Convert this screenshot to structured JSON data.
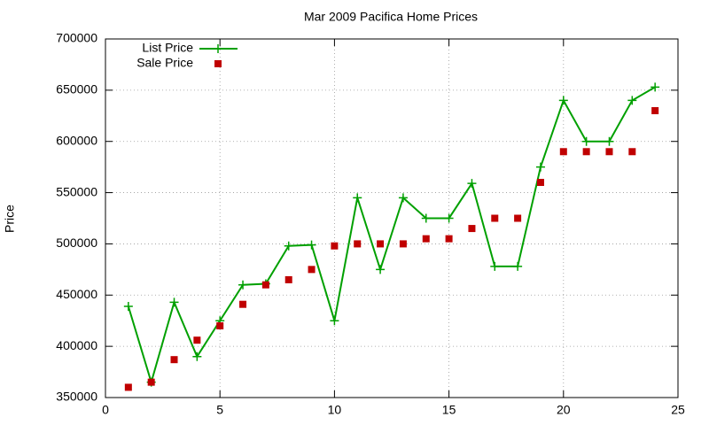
{
  "chart_data": {
    "type": "line",
    "title": "Mar 2009 Pacifica Home Prices",
    "y_label": "Price",
    "x": [
      1,
      2,
      3,
      4,
      5,
      6,
      7,
      8,
      9,
      10,
      11,
      12,
      13,
      14,
      15,
      16,
      17,
      18,
      19,
      20,
      21,
      22,
      23,
      24
    ],
    "series": [
      {
        "name": "List Price",
        "color": "#00a000",
        "style": "linespoints",
        "values": [
          439000,
          365000,
          443000,
          390000,
          425000,
          460000,
          461000,
          498000,
          499000,
          425000,
          545000,
          475000,
          545000,
          525000,
          525000,
          559000,
          478000,
          478000,
          575000,
          640000,
          600000,
          600000,
          640000,
          653000
        ]
      },
      {
        "name": "Sale Price",
        "color": "#c00000",
        "style": "points",
        "values": [
          360000,
          365000,
          387000,
          406000,
          420000,
          441000,
          460000,
          465000,
          475000,
          498000,
          500000,
          500000,
          500000,
          505000,
          505000,
          515000,
          525000,
          525000,
          560000,
          590000,
          590000,
          590000,
          590000,
          630000
        ]
      }
    ],
    "xlim": [
      0,
      25
    ],
    "xticks": [
      0,
      5,
      10,
      15,
      20,
      25
    ],
    "ylim": [
      350000,
      700000
    ],
    "yticks": [
      350000,
      400000,
      450000,
      500000,
      550000,
      600000,
      650000,
      700000
    ],
    "grid": true,
    "legend": "top-left"
  }
}
